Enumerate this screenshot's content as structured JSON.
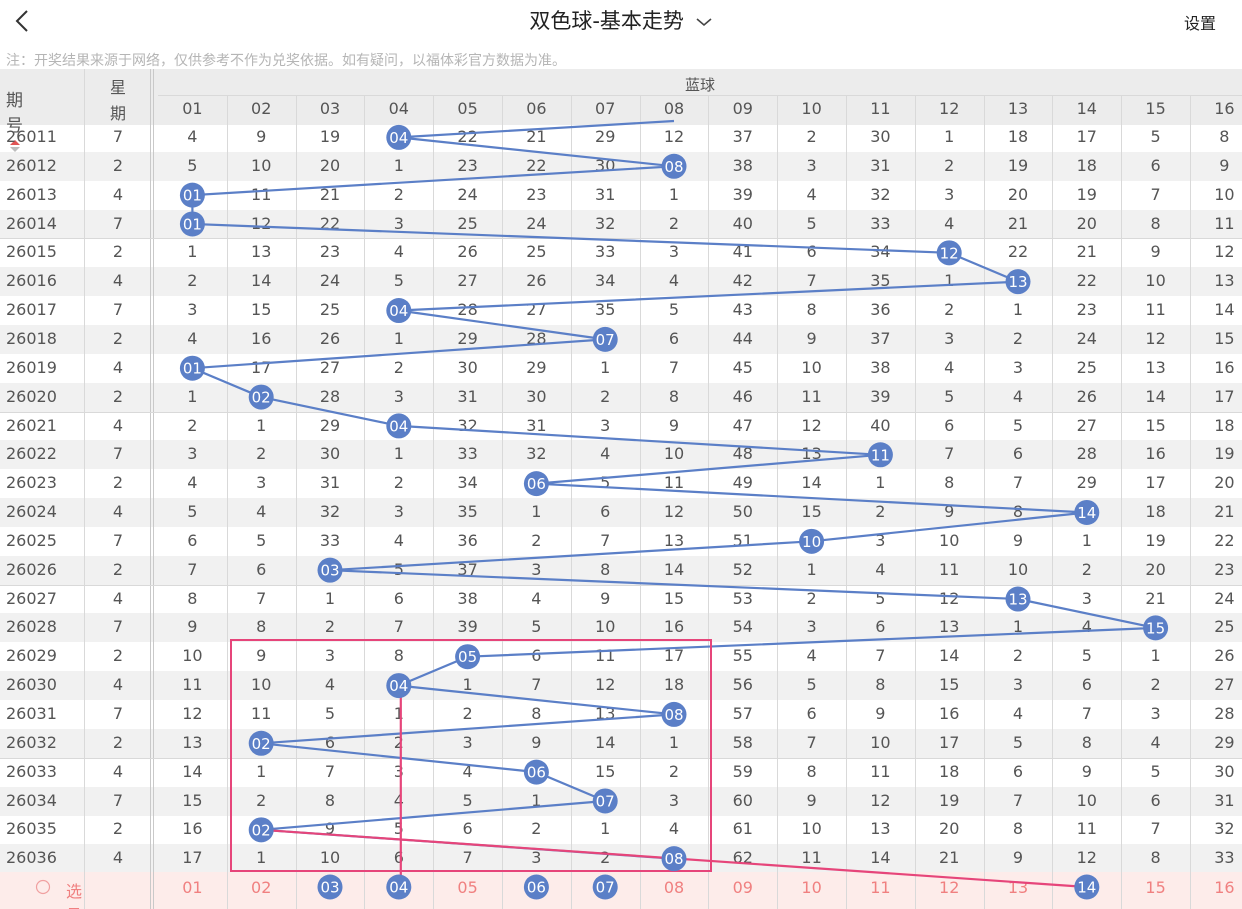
{
  "header": {
    "title": "双色球-基本走势",
    "settings_label": "设置"
  },
  "notice": "注：开奖结果来源于网络，仅供参考不作为兑奖依据。如有疑问，以福体彩官方数据为准。",
  "table": {
    "col_issue": "期号",
    "col_week_top": "星",
    "col_week_bottom": "期",
    "group_label": "蓝球",
    "numbers": [
      "01",
      "02",
      "03",
      "04",
      "05",
      "06",
      "07",
      "08",
      "09",
      "10",
      "11",
      "12",
      "13",
      "14",
      "15",
      "16"
    ],
    "rows": [
      {
        "issue": "26011",
        "week": "7",
        "hit": 4,
        "cells": [
          "4",
          "9",
          "19",
          "04",
          "22",
          "21",
          "29",
          "12",
          "37",
          "2",
          "30",
          "1",
          "18",
          "17",
          "5",
          "8"
        ]
      },
      {
        "issue": "26012",
        "week": "2",
        "hit": 8,
        "cells": [
          "5",
          "10",
          "20",
          "1",
          "23",
          "22",
          "30",
          "08",
          "38",
          "3",
          "31",
          "2",
          "19",
          "18",
          "6",
          "9"
        ]
      },
      {
        "issue": "26013",
        "week": "4",
        "hit": 1,
        "cells": [
          "01",
          "11",
          "21",
          "2",
          "24",
          "23",
          "31",
          "1",
          "39",
          "4",
          "32",
          "3",
          "20",
          "19",
          "7",
          "10"
        ]
      },
      {
        "issue": "26014",
        "week": "7",
        "hit": 1,
        "cells": [
          "01",
          "12",
          "22",
          "3",
          "25",
          "24",
          "32",
          "2",
          "40",
          "5",
          "33",
          "4",
          "21",
          "20",
          "8",
          "11"
        ]
      },
      {
        "issue": "26015",
        "week": "2",
        "hit": 12,
        "cells": [
          "1",
          "13",
          "23",
          "4",
          "26",
          "25",
          "33",
          "3",
          "41",
          "6",
          "34",
          "12",
          "22",
          "21",
          "9",
          "12"
        ]
      },
      {
        "issue": "26016",
        "week": "4",
        "hit": 13,
        "cells": [
          "2",
          "14",
          "24",
          "5",
          "27",
          "26",
          "34",
          "4",
          "42",
          "7",
          "35",
          "1",
          "13",
          "22",
          "10",
          "13"
        ]
      },
      {
        "issue": "26017",
        "week": "7",
        "hit": 4,
        "cells": [
          "3",
          "15",
          "25",
          "04",
          "28",
          "27",
          "35",
          "5",
          "43",
          "8",
          "36",
          "2",
          "1",
          "23",
          "11",
          "14"
        ]
      },
      {
        "issue": "26018",
        "week": "2",
        "hit": 7,
        "cells": [
          "4",
          "16",
          "26",
          "1",
          "29",
          "28",
          "07",
          "6",
          "44",
          "9",
          "37",
          "3",
          "2",
          "24",
          "12",
          "15"
        ]
      },
      {
        "issue": "26019",
        "week": "4",
        "hit": 1,
        "cells": [
          "01",
          "17",
          "27",
          "2",
          "30",
          "29",
          "1",
          "7",
          "45",
          "10",
          "38",
          "4",
          "3",
          "25",
          "13",
          "16"
        ]
      },
      {
        "issue": "26020",
        "week": "2",
        "hit": 2,
        "cells": [
          "1",
          "02",
          "28",
          "3",
          "31",
          "30",
          "2",
          "8",
          "46",
          "11",
          "39",
          "5",
          "4",
          "26",
          "14",
          "17"
        ]
      },
      {
        "issue": "26021",
        "week": "4",
        "hit": 4,
        "cells": [
          "2",
          "1",
          "29",
          "04",
          "32",
          "31",
          "3",
          "9",
          "47",
          "12",
          "40",
          "6",
          "5",
          "27",
          "15",
          "18"
        ]
      },
      {
        "issue": "26022",
        "week": "7",
        "hit": 11,
        "cells": [
          "3",
          "2",
          "30",
          "1",
          "33",
          "32",
          "4",
          "10",
          "48",
          "13",
          "11",
          "7",
          "6",
          "28",
          "16",
          "19"
        ]
      },
      {
        "issue": "26023",
        "week": "2",
        "hit": 6,
        "cells": [
          "4",
          "3",
          "31",
          "2",
          "34",
          "06",
          "5",
          "11",
          "49",
          "14",
          "1",
          "8",
          "7",
          "29",
          "17",
          "20"
        ]
      },
      {
        "issue": "26024",
        "week": "4",
        "hit": 14,
        "cells": [
          "5",
          "4",
          "32",
          "3",
          "35",
          "1",
          "6",
          "12",
          "50",
          "15",
          "2",
          "9",
          "8",
          "14",
          "18",
          "21"
        ]
      },
      {
        "issue": "26025",
        "week": "7",
        "hit": 10,
        "cells": [
          "6",
          "5",
          "33",
          "4",
          "36",
          "2",
          "7",
          "13",
          "51",
          "10",
          "3",
          "10",
          "9",
          "1",
          "19",
          "22"
        ]
      },
      {
        "issue": "26026",
        "week": "2",
        "hit": 3,
        "cells": [
          "7",
          "6",
          "03",
          "5",
          "37",
          "3",
          "8",
          "14",
          "52",
          "1",
          "4",
          "11",
          "10",
          "2",
          "20",
          "23"
        ]
      },
      {
        "issue": "26027",
        "week": "4",
        "hit": 13,
        "cells": [
          "8",
          "7",
          "1",
          "6",
          "38",
          "4",
          "9",
          "15",
          "53",
          "2",
          "5",
          "12",
          "13",
          "3",
          "21",
          "24"
        ]
      },
      {
        "issue": "26028",
        "week": "7",
        "hit": 15,
        "cells": [
          "9",
          "8",
          "2",
          "7",
          "39",
          "5",
          "10",
          "16",
          "54",
          "3",
          "6",
          "13",
          "1",
          "4",
          "15",
          "25"
        ]
      },
      {
        "issue": "26029",
        "week": "2",
        "hit": 5,
        "cells": [
          "10",
          "9",
          "3",
          "8",
          "05",
          "6",
          "11",
          "17",
          "55",
          "4",
          "7",
          "14",
          "2",
          "5",
          "1",
          "26"
        ]
      },
      {
        "issue": "26030",
        "week": "4",
        "hit": 4,
        "cells": [
          "11",
          "10",
          "4",
          "04",
          "1",
          "7",
          "12",
          "18",
          "56",
          "5",
          "8",
          "15",
          "3",
          "6",
          "2",
          "27"
        ]
      },
      {
        "issue": "26031",
        "week": "7",
        "hit": 8,
        "cells": [
          "12",
          "11",
          "5",
          "1",
          "2",
          "8",
          "13",
          "08",
          "57",
          "6",
          "9",
          "16",
          "4",
          "7",
          "3",
          "28"
        ]
      },
      {
        "issue": "26032",
        "week": "2",
        "hit": 2,
        "cells": [
          "13",
          "02",
          "6",
          "2",
          "3",
          "9",
          "14",
          "1",
          "58",
          "7",
          "10",
          "17",
          "5",
          "8",
          "4",
          "29"
        ]
      },
      {
        "issue": "26033",
        "week": "4",
        "hit": 6,
        "cells": [
          "14",
          "1",
          "7",
          "3",
          "4",
          "06",
          "15",
          "2",
          "59",
          "8",
          "11",
          "18",
          "6",
          "9",
          "5",
          "30"
        ]
      },
      {
        "issue": "26034",
        "week": "7",
        "hit": 7,
        "cells": [
          "15",
          "2",
          "8",
          "4",
          "5",
          "1",
          "07",
          "3",
          "60",
          "9",
          "12",
          "19",
          "7",
          "10",
          "6",
          "31"
        ]
      },
      {
        "issue": "26035",
        "week": "2",
        "hit": 2,
        "cells": [
          "16",
          "02",
          "9",
          "5",
          "6",
          "2",
          "1",
          "4",
          "61",
          "10",
          "13",
          "20",
          "8",
          "11",
          "7",
          "32"
        ]
      },
      {
        "issue": "26036",
        "week": "4",
        "hit": 8,
        "cells": [
          "17",
          "1",
          "10",
          "6",
          "7",
          "3",
          "2",
          "08",
          "62",
          "11",
          "14",
          "21",
          "9",
          "12",
          "8",
          "33"
        ]
      }
    ]
  },
  "selection": {
    "label": "选号",
    "selected": [
      3,
      4,
      6,
      7,
      14
    ]
  },
  "colors": {
    "ball": "#5b7fc7",
    "trend_line": "#5b7fc7",
    "highlight": "#e6457a",
    "select_text": "#f08080",
    "select_bg": "#fdecea",
    "sort_arrow": "#e05555"
  },
  "icons": {
    "back": "chevron-left-icon",
    "title_dropdown": "chevron-down-icon",
    "sort": "sort-icon",
    "select_radio": "radio-icon"
  }
}
